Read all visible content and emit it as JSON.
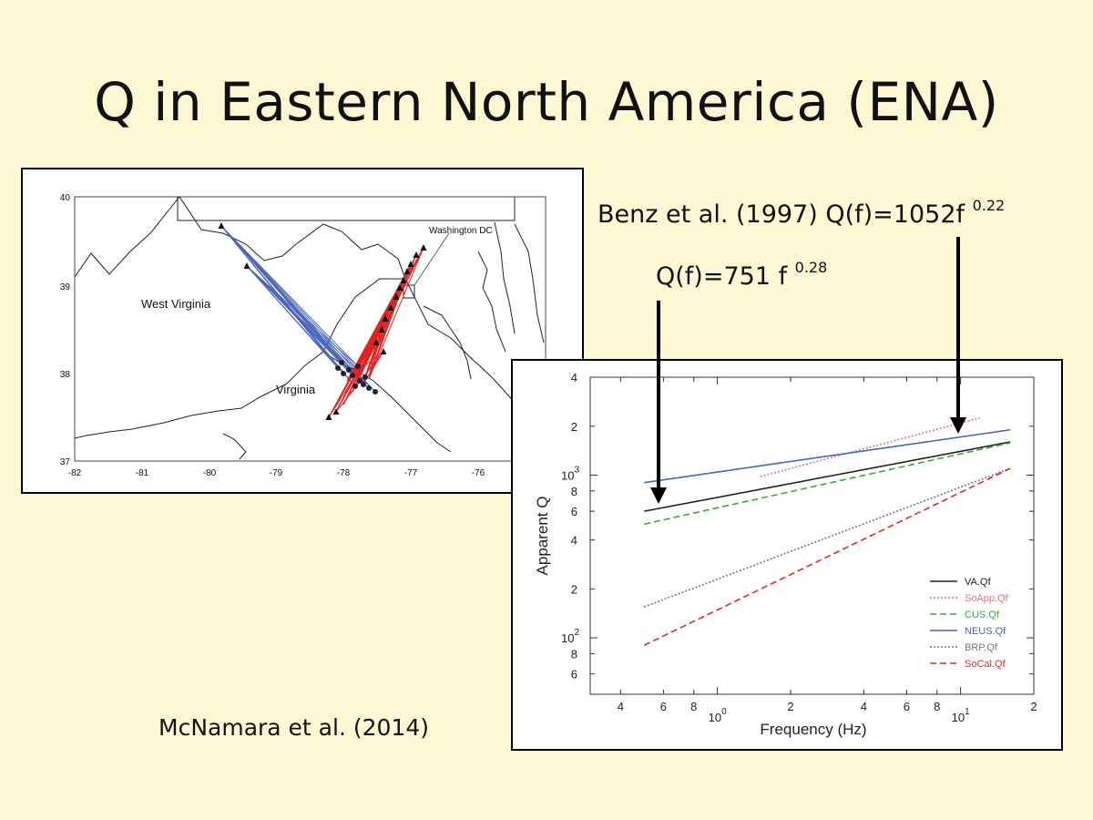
{
  "slide": {
    "title": "Q in Eastern North America (ENA)",
    "annotation_benz_prefix": "Benz et al. (1997) Q(f)=1052f ",
    "annotation_benz_exp": "0.22",
    "annotation_va_prefix": "Q(f)=751 f ",
    "annotation_va_exp": "0.28",
    "citation": "McNamara et al. (2014)"
  },
  "map": {
    "labels": {
      "west_virginia": "West Virginia",
      "virginia": "Virginia",
      "washington_dc": "Washington DC"
    },
    "lon_ticks": [
      "-82",
      "-81",
      "-80",
      "-79",
      "-78",
      "-77",
      "-76"
    ],
    "lat_ticks": [
      "40",
      "39",
      "38",
      "37"
    ],
    "ray_colors": {
      "blue": "#4a66b8",
      "red": "#e32222"
    }
  },
  "chart_data": {
    "type": "line",
    "xlabel": "Frequency (Hz)",
    "ylabel": "Apparent Q",
    "xscale": "log",
    "yscale": "log",
    "xlim": [
      0.3,
      20
    ],
    "ylim": [
      45,
      4000
    ],
    "x_tick_labels": [
      "4",
      "6",
      "8",
      "10^0",
      "2",
      "4",
      "6",
      "8",
      "10^1",
      "2"
    ],
    "y_tick_labels": [
      "4",
      "2",
      "10^3",
      "8",
      "6",
      "4",
      "2",
      "10^2",
      "8",
      "6"
    ],
    "legend_position": "bottom-right",
    "series": [
      {
        "name": "VA.Qf",
        "color": "#222222",
        "dash": "solid",
        "x": [
          0.5,
          16
        ],
        "y": [
          600,
          1600
        ]
      },
      {
        "name": "SoApp.Qf",
        "color": "#e8707a",
        "dash": "dotted",
        "x": [
          1.5,
          12
        ],
        "y": [
          980,
          2250
        ]
      },
      {
        "name": "CUS.Qf",
        "color": "#3aa83a",
        "dash": "dashed",
        "x": [
          0.5,
          16
        ],
        "y": [
          500,
          1580
        ]
      },
      {
        "name": "NEUS.Qf",
        "color": "#4a66b8",
        "dash": "solid",
        "x": [
          0.5,
          16
        ],
        "y": [
          900,
          1900
        ]
      },
      {
        "name": "BRP.Qf",
        "color": "#777777",
        "dash": "dotted",
        "x": [
          0.5,
          16
        ],
        "y": [
          155,
          1100
        ]
      },
      {
        "name": "SoCal.Qf",
        "color": "#dd2a2a",
        "dash": "dashed",
        "x": [
          0.5,
          16
        ],
        "y": [
          90,
          1100
        ]
      }
    ]
  }
}
